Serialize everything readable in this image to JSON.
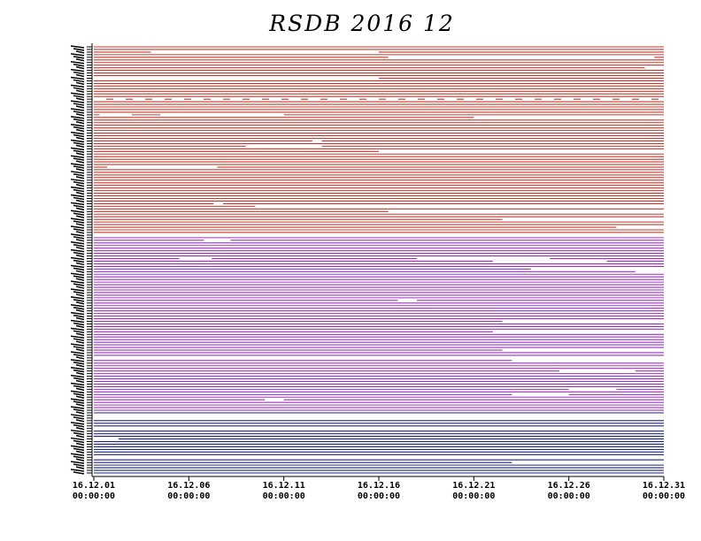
{
  "chart_data": {
    "type": "line",
    "title": "RSDB  2016  12",
    "xlabel": "",
    "ylabel": "",
    "x_range": [
      "16.12.01 00:00:00",
      "16.12.31 00:00:00"
    ],
    "x_ticks": [
      {
        "date": "16.12.01",
        "time": "00:00:00"
      },
      {
        "date": "16.12.06",
        "time": "00:00:00"
      },
      {
        "date": "16.12.11",
        "time": "00:00:00"
      },
      {
        "date": "16.12.16",
        "time": "00:00:00"
      },
      {
        "date": "16.12.21",
        "time": "00:00:00"
      },
      {
        "date": "16.12.26",
        "time": "00:00:00"
      },
      {
        "date": "16.12.31",
        "time": "00:00:00"
      }
    ],
    "y_tick_labels_legible": false,
    "station_groups": [
      {
        "color": "#c0392b",
        "count": 72
      },
      {
        "color": "#9b30c0",
        "count": 68
      },
      {
        "color": "#1a237e",
        "count": 24
      }
    ],
    "gaps": [
      {
        "row": 2,
        "from": 3.0,
        "to": 15.0
      },
      {
        "row": 4,
        "from": 15.5,
        "to": 29.5
      },
      {
        "row": 8,
        "from": 29.0,
        "to": 30.0
      },
      {
        "row": 12,
        "from": 0.0,
        "to": 15.0
      },
      {
        "row": 20,
        "from": 0.0,
        "to": 30.0,
        "dashed": true
      },
      {
        "row": 26,
        "from": 0.3,
        "to": 2.0
      },
      {
        "row": 26,
        "from": 3.5,
        "to": 10.0
      },
      {
        "row": 27,
        "from": 20.0,
        "to": 30.0
      },
      {
        "row": 36,
        "from": 11.5,
        "to": 12.0
      },
      {
        "row": 38,
        "from": 8.0,
        "to": 12.0
      },
      {
        "row": 40,
        "from": 15.0,
        "to": 30.0
      },
      {
        "row": 46,
        "from": 0.7,
        "to": 6.5
      },
      {
        "row": 60,
        "from": 6.3,
        "to": 6.8
      },
      {
        "row": 61,
        "from": 8.5,
        "to": 30.0
      },
      {
        "row": 63,
        "from": 15.5,
        "to": 30.0
      },
      {
        "row": 66,
        "from": 21.5,
        "to": 30.0
      },
      {
        "row": 69,
        "from": 27.5,
        "to": 30.0
      },
      {
        "row": 72,
        "from": 0.0,
        "to": 30.0
      },
      {
        "row": 74,
        "from": 5.8,
        "to": 7.2
      },
      {
        "row": 81,
        "from": 4.5,
        "to": 6.2
      },
      {
        "row": 81,
        "from": 17.0,
        "to": 24.0
      },
      {
        "row": 82,
        "from": 21.0,
        "to": 27.0
      },
      {
        "row": 85,
        "from": 23.0,
        "to": 30.0
      },
      {
        "row": 86,
        "from": 28.5,
        "to": 30.0
      },
      {
        "row": 97,
        "from": 16.0,
        "to": 17.0
      },
      {
        "row": 105,
        "from": 21.5,
        "to": 30.0
      },
      {
        "row": 109,
        "from": 21.0,
        "to": 30.0
      },
      {
        "row": 116,
        "from": 21.5,
        "to": 30.0
      },
      {
        "row": 119,
        "from": 0.0,
        "to": 30.0
      },
      {
        "row": 120,
        "from": 22.0,
        "to": 30.0
      },
      {
        "row": 124,
        "from": 24.5,
        "to": 28.5
      },
      {
        "row": 131,
        "from": 25.0,
        "to": 27.5
      },
      {
        "row": 133,
        "from": 22.0,
        "to": 25.0
      },
      {
        "row": 135,
        "from": 9.0,
        "to": 10.0
      },
      {
        "row": 141,
        "from": 0.0,
        "to": 30.0
      },
      {
        "row": 142,
        "from": 0.0,
        "to": 30.0
      },
      {
        "row": 146,
        "from": 0.0,
        "to": 30.0
      },
      {
        "row": 150,
        "from": 0.0,
        "to": 1.3
      },
      {
        "row": 157,
        "from": 0.0,
        "to": 30.0
      },
      {
        "row": 159,
        "from": 22.0,
        "to": 30.0
      }
    ]
  }
}
